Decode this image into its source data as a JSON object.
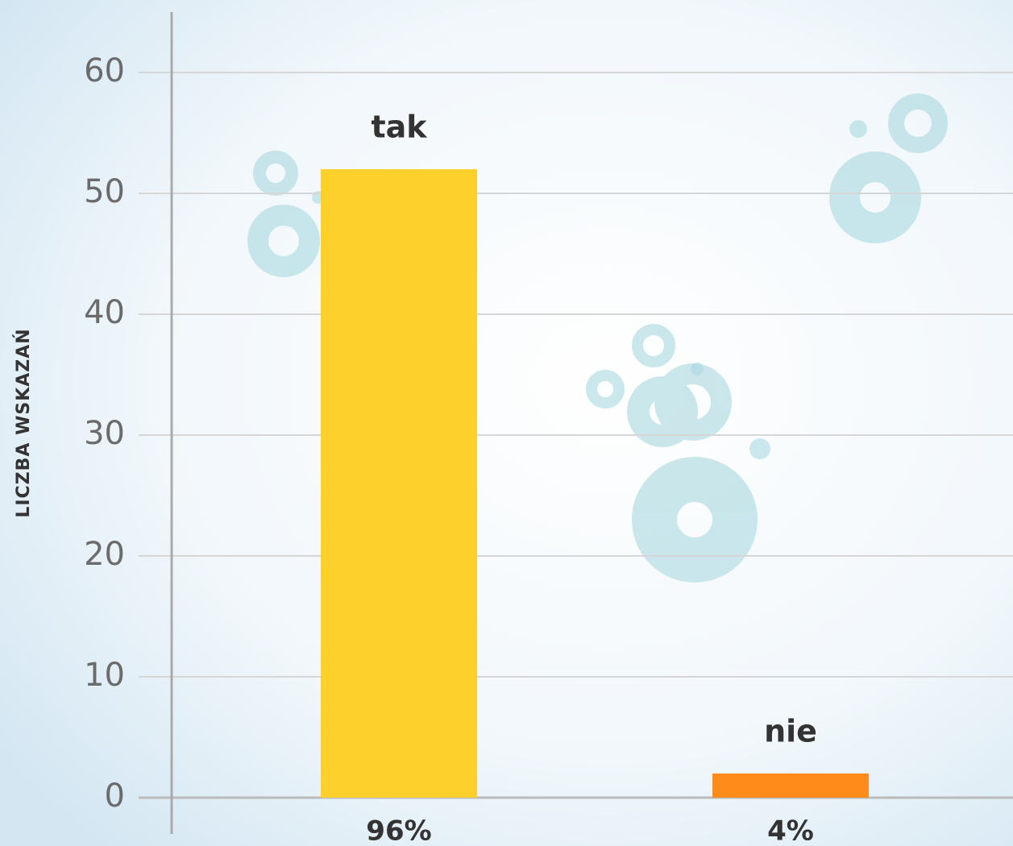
{
  "chart_data": {
    "type": "bar",
    "y_label": "LICZBA WSKAZAŃ",
    "categories": [
      "tak",
      "nie"
    ],
    "x_labels": [
      "96%",
      "4%"
    ],
    "values": [
      52,
      2
    ],
    "colors": [
      "#fdd02c",
      "#ff8c1a"
    ],
    "ylim": [
      -3,
      65
    ],
    "yticks": [
      0,
      10,
      20,
      30,
      40,
      50,
      60
    ],
    "grid": true
  }
}
